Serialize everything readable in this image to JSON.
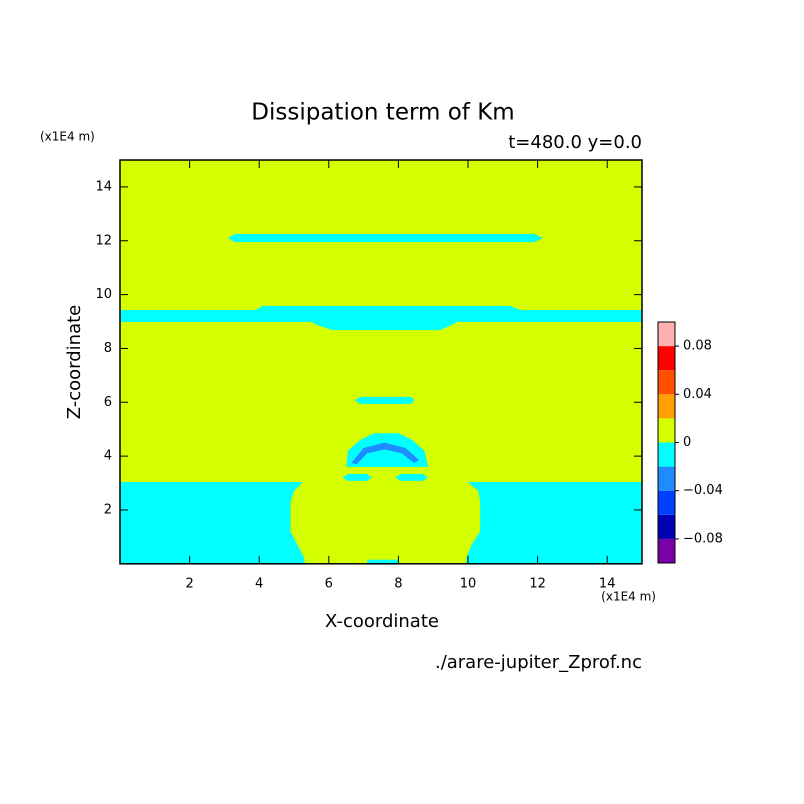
{
  "chart_data": {
    "type": "contour",
    "title": "Dissipation term of Km",
    "subtitle": "t=480.0 y=0.0",
    "x_label": "X-coordinate",
    "y_label": "Z-coordinate",
    "x_unit": "(x1E4 m)",
    "y_unit": "(x1E4 m)",
    "source": "./arare-jupiter_Zprof.nc",
    "xlim": [
      0,
      15
    ],
    "ylim": [
      0,
      15
    ],
    "xticks": [
      2,
      4,
      6,
      8,
      10,
      12,
      14
    ],
    "yticks": [
      2,
      4,
      6,
      8,
      10,
      12,
      14
    ],
    "levels": [
      -0.1,
      -0.08,
      -0.06,
      -0.04,
      -0.02,
      0,
      0.02,
      0.04,
      0.06,
      0.08,
      0.1
    ],
    "colors": [
      "#7a00a8",
      "#0000b4",
      "#0040ff",
      "#1e8cff",
      "#00ffff",
      "#d4ff00",
      "#ffa000",
      "#ff5000",
      "#ff0000",
      "#ffb0b0"
    ],
    "colorbar_ticks": [
      {
        "value": 0.08,
        "label": "0.08"
      },
      {
        "value": 0.04,
        "label": "0.04"
      },
      0,
      {
        "value": -0.04,
        "label": "−0.04"
      },
      {
        "value": -0.08,
        "label": "−0.08"
      }
    ],
    "background_level": 0,
    "regions": [
      {
        "level": -0.02,
        "points": [
          [
            3.1,
            12.1
          ],
          [
            3.3,
            12.25
          ],
          [
            11.9,
            12.25
          ],
          [
            12.15,
            12.1
          ],
          [
            11.9,
            11.95
          ],
          [
            3.3,
            11.95
          ]
        ]
      },
      {
        "level": -0.02,
        "points": [
          [
            0,
            9.43
          ],
          [
            3.9,
            9.43
          ],
          [
            4.1,
            9.58
          ],
          [
            11.2,
            9.58
          ],
          [
            11.5,
            9.43
          ],
          [
            15,
            9.43
          ],
          [
            15,
            8.98
          ],
          [
            9.7,
            8.98
          ],
          [
            9.5,
            8.85
          ],
          [
            9.2,
            8.68
          ],
          [
            6.1,
            8.68
          ],
          [
            5.7,
            8.85
          ],
          [
            5.5,
            8.98
          ],
          [
            0,
            8.98
          ]
        ]
      },
      {
        "level": -0.02,
        "points": [
          [
            6.75,
            6.07
          ],
          [
            6.9,
            6.2
          ],
          [
            8.35,
            6.2
          ],
          [
            8.47,
            6.07
          ],
          [
            8.35,
            5.94
          ],
          [
            6.9,
            5.94
          ]
        ]
      },
      {
        "level": -0.02,
        "points": [
          [
            6.5,
            3.6
          ],
          [
            6.55,
            4.2
          ],
          [
            6.9,
            4.6
          ],
          [
            7.3,
            4.85
          ],
          [
            8.0,
            4.85
          ],
          [
            8.4,
            4.6
          ],
          [
            8.75,
            4.2
          ],
          [
            8.85,
            3.6
          ]
        ]
      },
      {
        "level": -0.04,
        "points": [
          [
            6.65,
            3.75
          ],
          [
            7.0,
            4.3
          ],
          [
            7.6,
            4.5
          ],
          [
            8.2,
            4.3
          ],
          [
            8.6,
            3.85
          ],
          [
            8.45,
            3.75
          ],
          [
            8.1,
            4.1
          ],
          [
            7.6,
            4.25
          ],
          [
            7.1,
            4.1
          ],
          [
            6.8,
            3.7
          ]
        ]
      },
      {
        "level": -0.02,
        "points": [
          [
            6.4,
            3.2
          ],
          [
            6.55,
            3.34
          ],
          [
            7.1,
            3.34
          ],
          [
            7.23,
            3.2
          ],
          [
            7.1,
            3.08
          ],
          [
            6.55,
            3.08
          ]
        ]
      },
      {
        "level": -0.02,
        "points": [
          [
            7.92,
            3.2
          ],
          [
            8.05,
            3.34
          ],
          [
            8.7,
            3.34
          ],
          [
            8.84,
            3.2
          ],
          [
            8.7,
            3.08
          ],
          [
            8.05,
            3.08
          ]
        ]
      },
      {
        "level": -0.02,
        "points": [
          [
            0,
            3.04
          ],
          [
            5.25,
            3.04
          ],
          [
            5.0,
            2.7
          ],
          [
            4.9,
            2.3
          ],
          [
            4.9,
            1.2
          ],
          [
            5.1,
            0.7
          ],
          [
            5.3,
            0.2
          ],
          [
            5.3,
            0
          ],
          [
            0,
            0
          ]
        ]
      },
      {
        "level": -0.02,
        "points": [
          [
            15,
            3.04
          ],
          [
            10.0,
            3.04
          ],
          [
            10.3,
            2.7
          ],
          [
            10.35,
            2.3
          ],
          [
            10.35,
            1.2
          ],
          [
            10.1,
            0.7
          ],
          [
            9.95,
            0.2
          ],
          [
            9.95,
            0
          ],
          [
            15,
            0
          ]
        ]
      },
      {
        "level": -0.02,
        "points": [
          [
            7.1,
            0
          ],
          [
            7.1,
            0.15
          ],
          [
            8.0,
            0.15
          ],
          [
            8.0,
            0
          ]
        ]
      }
    ]
  }
}
